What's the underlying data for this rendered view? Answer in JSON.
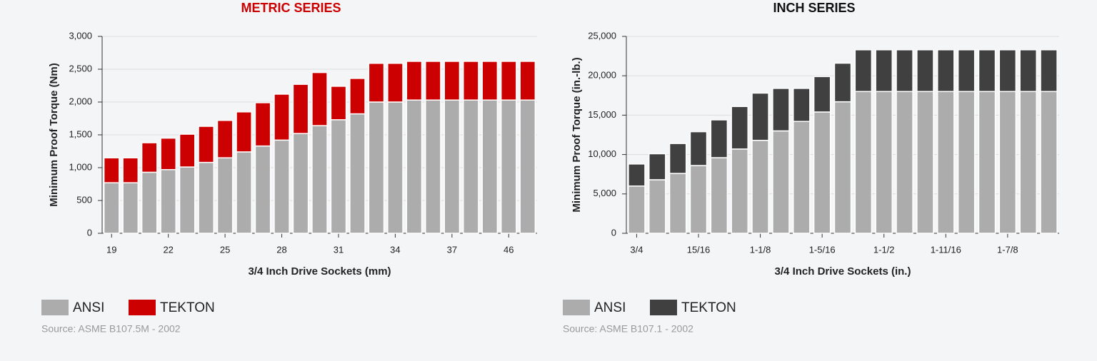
{
  "chart_data": [
    {
      "type": "stacked_bar",
      "title": "METRIC SERIES",
      "title_color": "#cc0000",
      "x_label": "3/4 Inch Drive Sockets (mm)",
      "y_label": "Minimum Proof Torque (Nm)",
      "categories": [
        "19",
        null,
        null,
        "22",
        null,
        null,
        "25",
        null,
        null,
        "28",
        null,
        null,
        "31",
        null,
        null,
        "34",
        null,
        null,
        "37",
        null,
        null,
        "46",
        null
      ],
      "series": [
        {
          "name": "ANSI",
          "color": "#acacac",
          "values": [
            770,
            770,
            930,
            970,
            1010,
            1080,
            1150,
            1240,
            1330,
            1420,
            1520,
            1640,
            1730,
            1820,
            2000,
            2000,
            2030,
            2030,
            2030,
            2030,
            2030,
            2030,
            2030
          ]
        },
        {
          "name": "TEKTON",
          "color": "#cc0000",
          "values": [
            380,
            380,
            450,
            480,
            500,
            550,
            570,
            610,
            660,
            700,
            750,
            810,
            510,
            540,
            590,
            590,
            590,
            590,
            590,
            590,
            590,
            590,
            590
          ]
        }
      ],
      "ylim": [
        0,
        3000
      ],
      "yticks": [
        0,
        {
          "value": 500,
          "label": "500"
        },
        {
          "value": 1000,
          "label": "1,000"
        },
        {
          "value": 1500,
          "label": "1,500"
        },
        {
          "value": 2000,
          "label": "2,000"
        },
        {
          "value": 2500,
          "label": "2,500"
        },
        {
          "value": 3000,
          "label": "3,000"
        }
      ],
      "grid": true,
      "source": "Source: ASME B107.5M - 2002"
    },
    {
      "type": "stacked_bar",
      "title": "INCH SERIES",
      "title_color": "#111111",
      "x_label": "3/4 Inch Drive Sockets (in.)",
      "y_label": "Minimum Proof Torque (in.-lb.)",
      "categories": [
        "3/4",
        null,
        null,
        "15/16",
        null,
        null,
        "1-1/8",
        null,
        null,
        "1-5/16",
        null,
        null,
        "1-1/2",
        null,
        null,
        "1-11/16",
        null,
        null,
        "1-7/8",
        null,
        null
      ],
      "series": [
        {
          "name": "ANSI",
          "color": "#acacac",
          "values": [
            6000,
            6800,
            7600,
            8600,
            9600,
            10700,
            11800,
            13000,
            14200,
            15400,
            16700,
            18000,
            18000,
            18000,
            18000,
            18000,
            18000,
            18000,
            18000,
            18000,
            18000
          ]
        },
        {
          "name": "TEKTON",
          "color": "#404040",
          "values": [
            2800,
            3300,
            3800,
            4300,
            4800,
            5400,
            6000,
            5400,
            4200,
            4500,
            4900,
            5300,
            5300,
            5300,
            5300,
            5300,
            5300,
            5300,
            5300,
            5300,
            5300
          ]
        }
      ],
      "ylim": [
        0,
        25000
      ],
      "yticks": [
        0,
        {
          "value": 5000,
          "label": "5,000"
        },
        {
          "value": 10000,
          "label": "10,000"
        },
        {
          "value": 15000,
          "label": "15,000"
        },
        {
          "value": 20000,
          "label": "20,000"
        },
        {
          "value": 25000,
          "label": "25,000"
        }
      ],
      "grid": true,
      "source": "Source: ASME B107.1 - 2002"
    }
  ]
}
